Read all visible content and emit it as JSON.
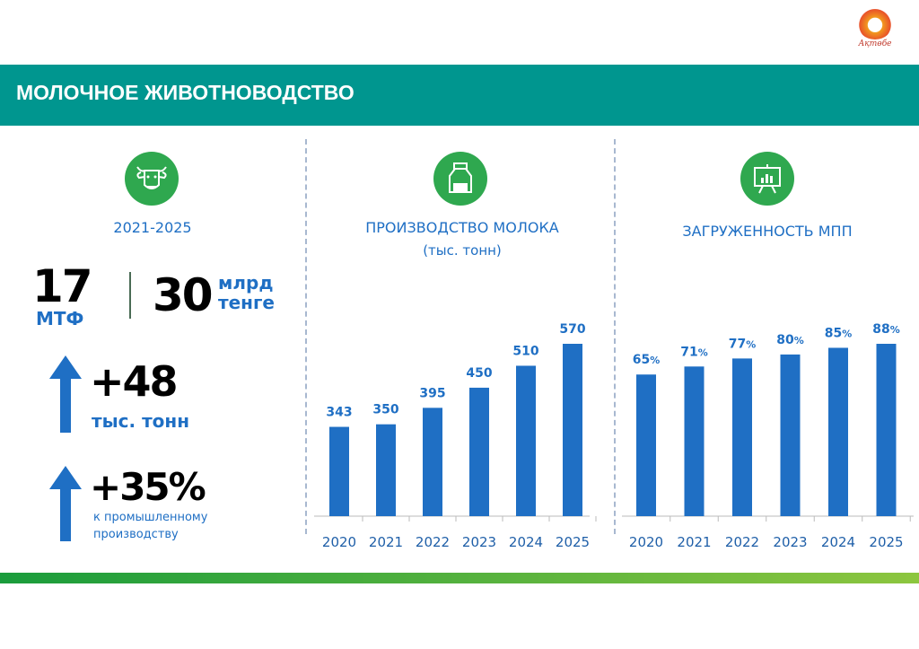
{
  "header": {
    "title": "МОЛОЧНОЕ ЖИВОТНОВОДСТВО"
  },
  "logo": {
    "text": "Ақтөбе"
  },
  "left": {
    "period": "2021-2025",
    "farms_value": "17",
    "farms_unit": "МТФ",
    "investment_value": "30",
    "investment_unit_1": "млрд",
    "investment_unit_2": "тенге",
    "growth_volume": "+48",
    "growth_volume_unit": "тыс. тонн",
    "growth_percent": "+35%",
    "growth_percent_line1": "к промышленному",
    "growth_percent_line2": "производству"
  },
  "colors": {
    "accent": "#00968f",
    "bar": "#1f6fc4",
    "icon": "#2fa84f"
  },
  "chart_data": [
    {
      "type": "bar",
      "title": "ПРОИЗВОДСТВО МОЛОКА",
      "subtitle": "(тыс. тонн)",
      "categories": [
        "2020",
        "2021",
        "2022",
        "2023",
        "2024",
        "2025"
      ],
      "values": [
        343,
        350,
        395,
        450,
        510,
        570
      ],
      "labels": [
        "343",
        "350",
        "395",
        "450",
        "510",
        "570"
      ],
      "ylim": [
        99,
        570
      ]
    },
    {
      "type": "bar",
      "title": "ЗАГРУЖЕННОСТЬ МПП",
      "categories": [
        "2020",
        "2021",
        "2022",
        "2023",
        "2024",
        "2025"
      ],
      "values": [
        65,
        71,
        77,
        80,
        85,
        88
      ],
      "labels": [
        "65",
        "71",
        "77",
        "80",
        "85",
        "88"
      ],
      "label_suffix": "%",
      "ylim": [
        -41,
        88
      ]
    }
  ]
}
